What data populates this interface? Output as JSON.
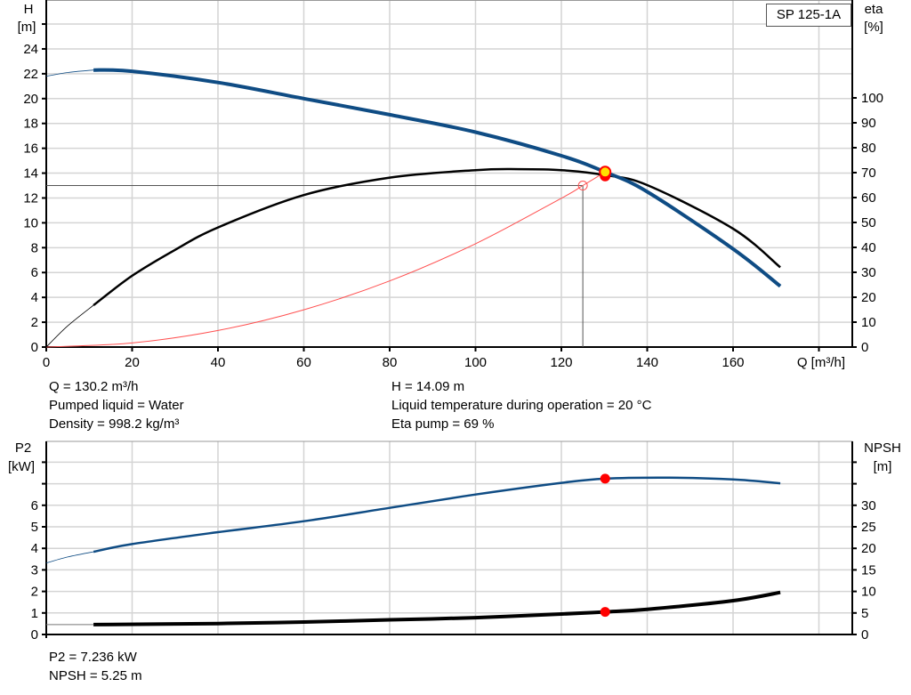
{
  "chart_data": [
    {
      "type": "line",
      "title": "",
      "legend": "SP 125-1A",
      "legend_placement": "top-right",
      "xlabel": "Q [m³/h]",
      "ylabel_left": [
        "H",
        "[m]"
      ],
      "ylabel_right": [
        "eta",
        "[%]"
      ],
      "xlim": [
        0,
        188
      ],
      "ylim_left": [
        0,
        28
      ],
      "ylim_right": [
        0,
        100
      ],
      "grid": true,
      "x_ticks": [
        "0",
        "20",
        "40",
        "60",
        "80",
        "100",
        "120",
        "140",
        "160"
      ],
      "y_left_ticks": [
        "0",
        "2",
        "4",
        "6",
        "8",
        "10",
        "12",
        "14",
        "16",
        "18",
        "20",
        "22",
        "24"
      ],
      "y_right_ticks": [
        "0",
        "10",
        "20",
        "30",
        "40",
        "50",
        "60",
        "70",
        "80",
        "90",
        "100"
      ],
      "colors": {
        "head": "#0f4c84",
        "eta": "#000000",
        "system": "#ff5050",
        "duty_point": "#ff0000",
        "duty_point_fill": "#ffe000"
      },
      "series": [
        {
          "key": "head",
          "axis": "left",
          "thin": [
            [
              0,
              21.8
            ],
            [
              5,
              22.1
            ],
            [
              11,
              22.3
            ]
          ],
          "points": [
            [
              11,
              22.3
            ],
            [
              20,
              22.2
            ],
            [
              40,
              21.3
            ],
            [
              60,
              20.0
            ],
            [
              80,
              18.7
            ],
            [
              100,
              17.3
            ],
            [
              120,
              15.4
            ],
            [
              130.2,
              14.09
            ],
            [
              140,
              12.5
            ],
            [
              160,
              7.9
            ],
            [
              171,
              4.9
            ]
          ]
        },
        {
          "key": "eta",
          "axis": "right",
          "thin": [
            [
              0,
              0
            ],
            [
              5,
              8.5
            ],
            [
              11,
              16.8
            ]
          ],
          "points": [
            [
              11,
              16.8
            ],
            [
              20,
              28.6
            ],
            [
              30,
              39
            ],
            [
              40,
              48
            ],
            [
              60,
              61
            ],
            [
              80,
              68
            ],
            [
              100,
              71
            ],
            [
              110,
              71.4
            ],
            [
              120,
              71
            ],
            [
              130.2,
              69
            ],
            [
              140,
              65
            ],
            [
              160,
              47.5
            ],
            [
              171,
              32
            ]
          ]
        },
        {
          "key": "system",
          "axis": "left",
          "formula": "H = 13*(Q/125)^2",
          "points": [
            [
              0,
              0
            ],
            [
              20,
              0.33
            ],
            [
              40,
              1.33
            ],
            [
              60,
              3.0
            ],
            [
              80,
              5.32
            ],
            [
              100,
              8.32
            ],
            [
              120,
              11.98
            ],
            [
              125,
              13
            ],
            [
              130.2,
              14.09
            ]
          ]
        }
      ],
      "duty_point": {
        "Q": 130.2,
        "H": 14.09,
        "eta": 69
      },
      "requested_point": {
        "Q": 125,
        "H": 13
      },
      "info": [
        "Q = 130.2 m³/h",
        "Pumped liquid = Water",
        "Density = 998.2 kg/m³",
        "H = 14.09 m",
        "Liquid temperature during operation = 20 °C",
        "Eta pump = 69 %"
      ]
    },
    {
      "type": "line",
      "title": "",
      "ylabel_left": [
        "P2",
        "[kW]"
      ],
      "ylabel_right": [
        "NPSH",
        "[m]"
      ],
      "xlim": [
        0,
        188
      ],
      "ylim_left": [
        0,
        8.9
      ],
      "ylim_right": [
        0,
        44.5
      ],
      "grid": true,
      "y_left_ticks": [
        "0",
        "1",
        "2",
        "3",
        "4",
        "5",
        "6"
      ],
      "y_right_ticks": [
        "0",
        "5",
        "10",
        "15",
        "20",
        "25",
        "30"
      ],
      "colors": {
        "p2": "#0f4c84",
        "npsh": "#000000",
        "duty_point": "#ff0000"
      },
      "series": [
        {
          "key": "p2",
          "axis": "left",
          "thin": [
            [
              0,
              3.32
            ],
            [
              5,
              3.6
            ],
            [
              11,
              3.84
            ]
          ],
          "points": [
            [
              11,
              3.84
            ],
            [
              20,
              4.2
            ],
            [
              40,
              4.75
            ],
            [
              60,
              5.26
            ],
            [
              80,
              5.88
            ],
            [
              100,
              6.5
            ],
            [
              120,
              7.04
            ],
            [
              130.2,
              7.236
            ],
            [
              145,
              7.28
            ],
            [
              160,
              7.2
            ],
            [
              171,
              7.02
            ]
          ]
        },
        {
          "key": "npsh",
          "axis": "right",
          "thin": [
            [
              0,
              2.3
            ],
            [
              11,
              2.3
            ]
          ],
          "points": [
            [
              11,
              2.3
            ],
            [
              40,
              2.54
            ],
            [
              60,
              2.9
            ],
            [
              80,
              3.4
            ],
            [
              100,
              3.9
            ],
            [
              120,
              4.75
            ],
            [
              130.2,
              5.25
            ],
            [
              140,
              5.85
            ],
            [
              160,
              7.85
            ],
            [
              171,
              9.77
            ]
          ]
        }
      ],
      "duty_point": {
        "Q": 130.2,
        "P2": 7.236,
        "NPSH": 5.25
      },
      "info": [
        "P2 = 7.236 kW",
        "NPSH = 5.25 m"
      ]
    }
  ]
}
